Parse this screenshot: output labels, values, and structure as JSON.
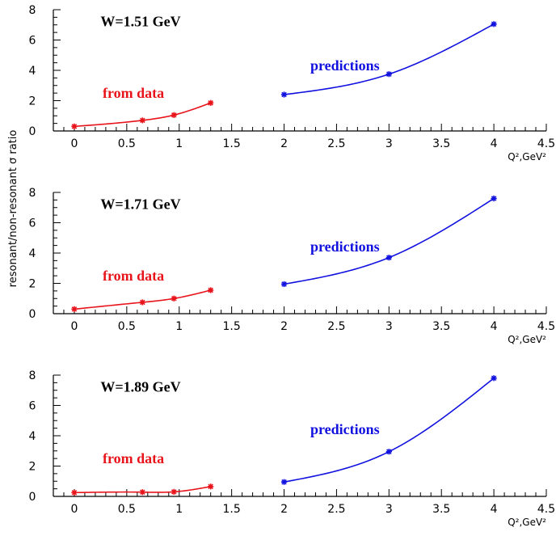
{
  "ylabel": "resonant/non-resonant σ ratio",
  "colors": {
    "data": "#e8141b",
    "prediction": "#1212e0",
    "axis": "#000000"
  },
  "chart_data": [
    {
      "type": "line",
      "title": "W=1.51 GeV",
      "xlabel": "Q²,GeV²",
      "xlim": [
        -0.2,
        4.5
      ],
      "ylim": [
        0,
        8
      ],
      "xticks": [
        "0",
        "0.5",
        "1",
        "1.5",
        "2",
        "2.5",
        "3",
        "3.5",
        "4",
        "4.5"
      ],
      "yticks": [
        "0",
        "2",
        "4",
        "6",
        "8"
      ],
      "series": [
        {
          "name": "from data",
          "color": "#e8141b",
          "x": [
            0,
            0.65,
            0.95,
            1.3
          ],
          "y": [
            0.3,
            0.7,
            1.05,
            1.85
          ]
        },
        {
          "name": "predictions",
          "color": "#1212e0",
          "x": [
            2,
            3,
            4
          ],
          "y": [
            2.4,
            3.75,
            7.05
          ]
        }
      ]
    },
    {
      "type": "line",
      "title": "W=1.71 GeV",
      "xlabel": "Q²,GeV²",
      "xlim": [
        -0.2,
        4.5
      ],
      "ylim": [
        0,
        8
      ],
      "xticks": [
        "0",
        "0.5",
        "1",
        "1.5",
        "2",
        "2.5",
        "3",
        "3.5",
        "4",
        "4.5"
      ],
      "yticks": [
        "0",
        "2",
        "4",
        "6",
        "8"
      ],
      "series": [
        {
          "name": "from data",
          "color": "#e8141b",
          "x": [
            0,
            0.65,
            0.95,
            1.3
          ],
          "y": [
            0.3,
            0.75,
            1.0,
            1.55
          ]
        },
        {
          "name": "predictions",
          "color": "#1212e0",
          "x": [
            2,
            3,
            4
          ],
          "y": [
            1.95,
            3.7,
            7.6
          ]
        }
      ]
    },
    {
      "type": "line",
      "title": "W=1.89 GeV",
      "xlabel": "Q²,GeV²",
      "xlim": [
        -0.2,
        4.5
      ],
      "ylim": [
        0,
        8
      ],
      "xticks": [
        "0",
        "0.5",
        "1",
        "1.5",
        "2",
        "2.5",
        "3",
        "3.5",
        "4",
        "4.5"
      ],
      "yticks": [
        "0",
        "2",
        "4",
        "6",
        "8"
      ],
      "series": [
        {
          "name": "from data",
          "color": "#e8141b",
          "x": [
            0,
            0.65,
            0.95,
            1.3
          ],
          "y": [
            0.25,
            0.28,
            0.3,
            0.65
          ]
        },
        {
          "name": "predictions",
          "color": "#1212e0",
          "x": [
            2,
            3,
            4
          ],
          "y": [
            0.95,
            2.95,
            7.8
          ]
        }
      ]
    }
  ]
}
